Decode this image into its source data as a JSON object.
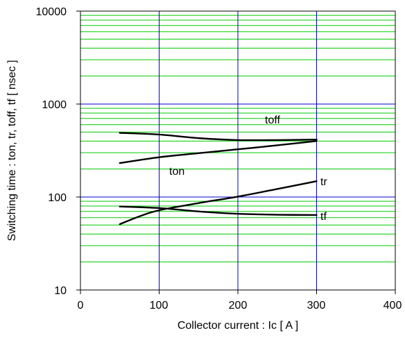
{
  "chart_data": {
    "type": "line",
    "xlabel": "Collector current : Ic [ A ]",
    "ylabel": "Switching time : ton, tr, toff, tf [ nsec ]",
    "xlim": [
      0,
      400
    ],
    "ylim": [
      10,
      10000
    ],
    "yscale": "log",
    "x_ticks": [
      "0",
      "100",
      "200",
      "300",
      "400"
    ],
    "y_ticks": [
      "10",
      "100",
      "1000",
      "10000"
    ],
    "grid": true,
    "colors": {
      "major_grid": "#0000cc",
      "minor_grid": "#00cc00",
      "series_line": "#000000",
      "frame": "#000000"
    },
    "series": [
      {
        "name": "toff",
        "x": [
          50,
          100,
          150,
          200,
          250,
          300
        ],
        "y": [
          490,
          470,
          430,
          410,
          410,
          415
        ]
      },
      {
        "name": "ton",
        "x": [
          50,
          100,
          150,
          200,
          250,
          300
        ],
        "y": [
          232,
          268,
          296,
          326,
          360,
          400
        ]
      },
      {
        "name": "tr",
        "x": [
          50,
          75,
          100,
          150,
          200,
          250,
          300
        ],
        "y": [
          51,
          62,
          72,
          86,
          101,
          122,
          148
        ]
      },
      {
        "name": "tf",
        "x": [
          50,
          100,
          150,
          200,
          250,
          300
        ],
        "y": [
          79,
          76,
          70,
          66,
          64.5,
          64
        ]
      }
    ]
  }
}
